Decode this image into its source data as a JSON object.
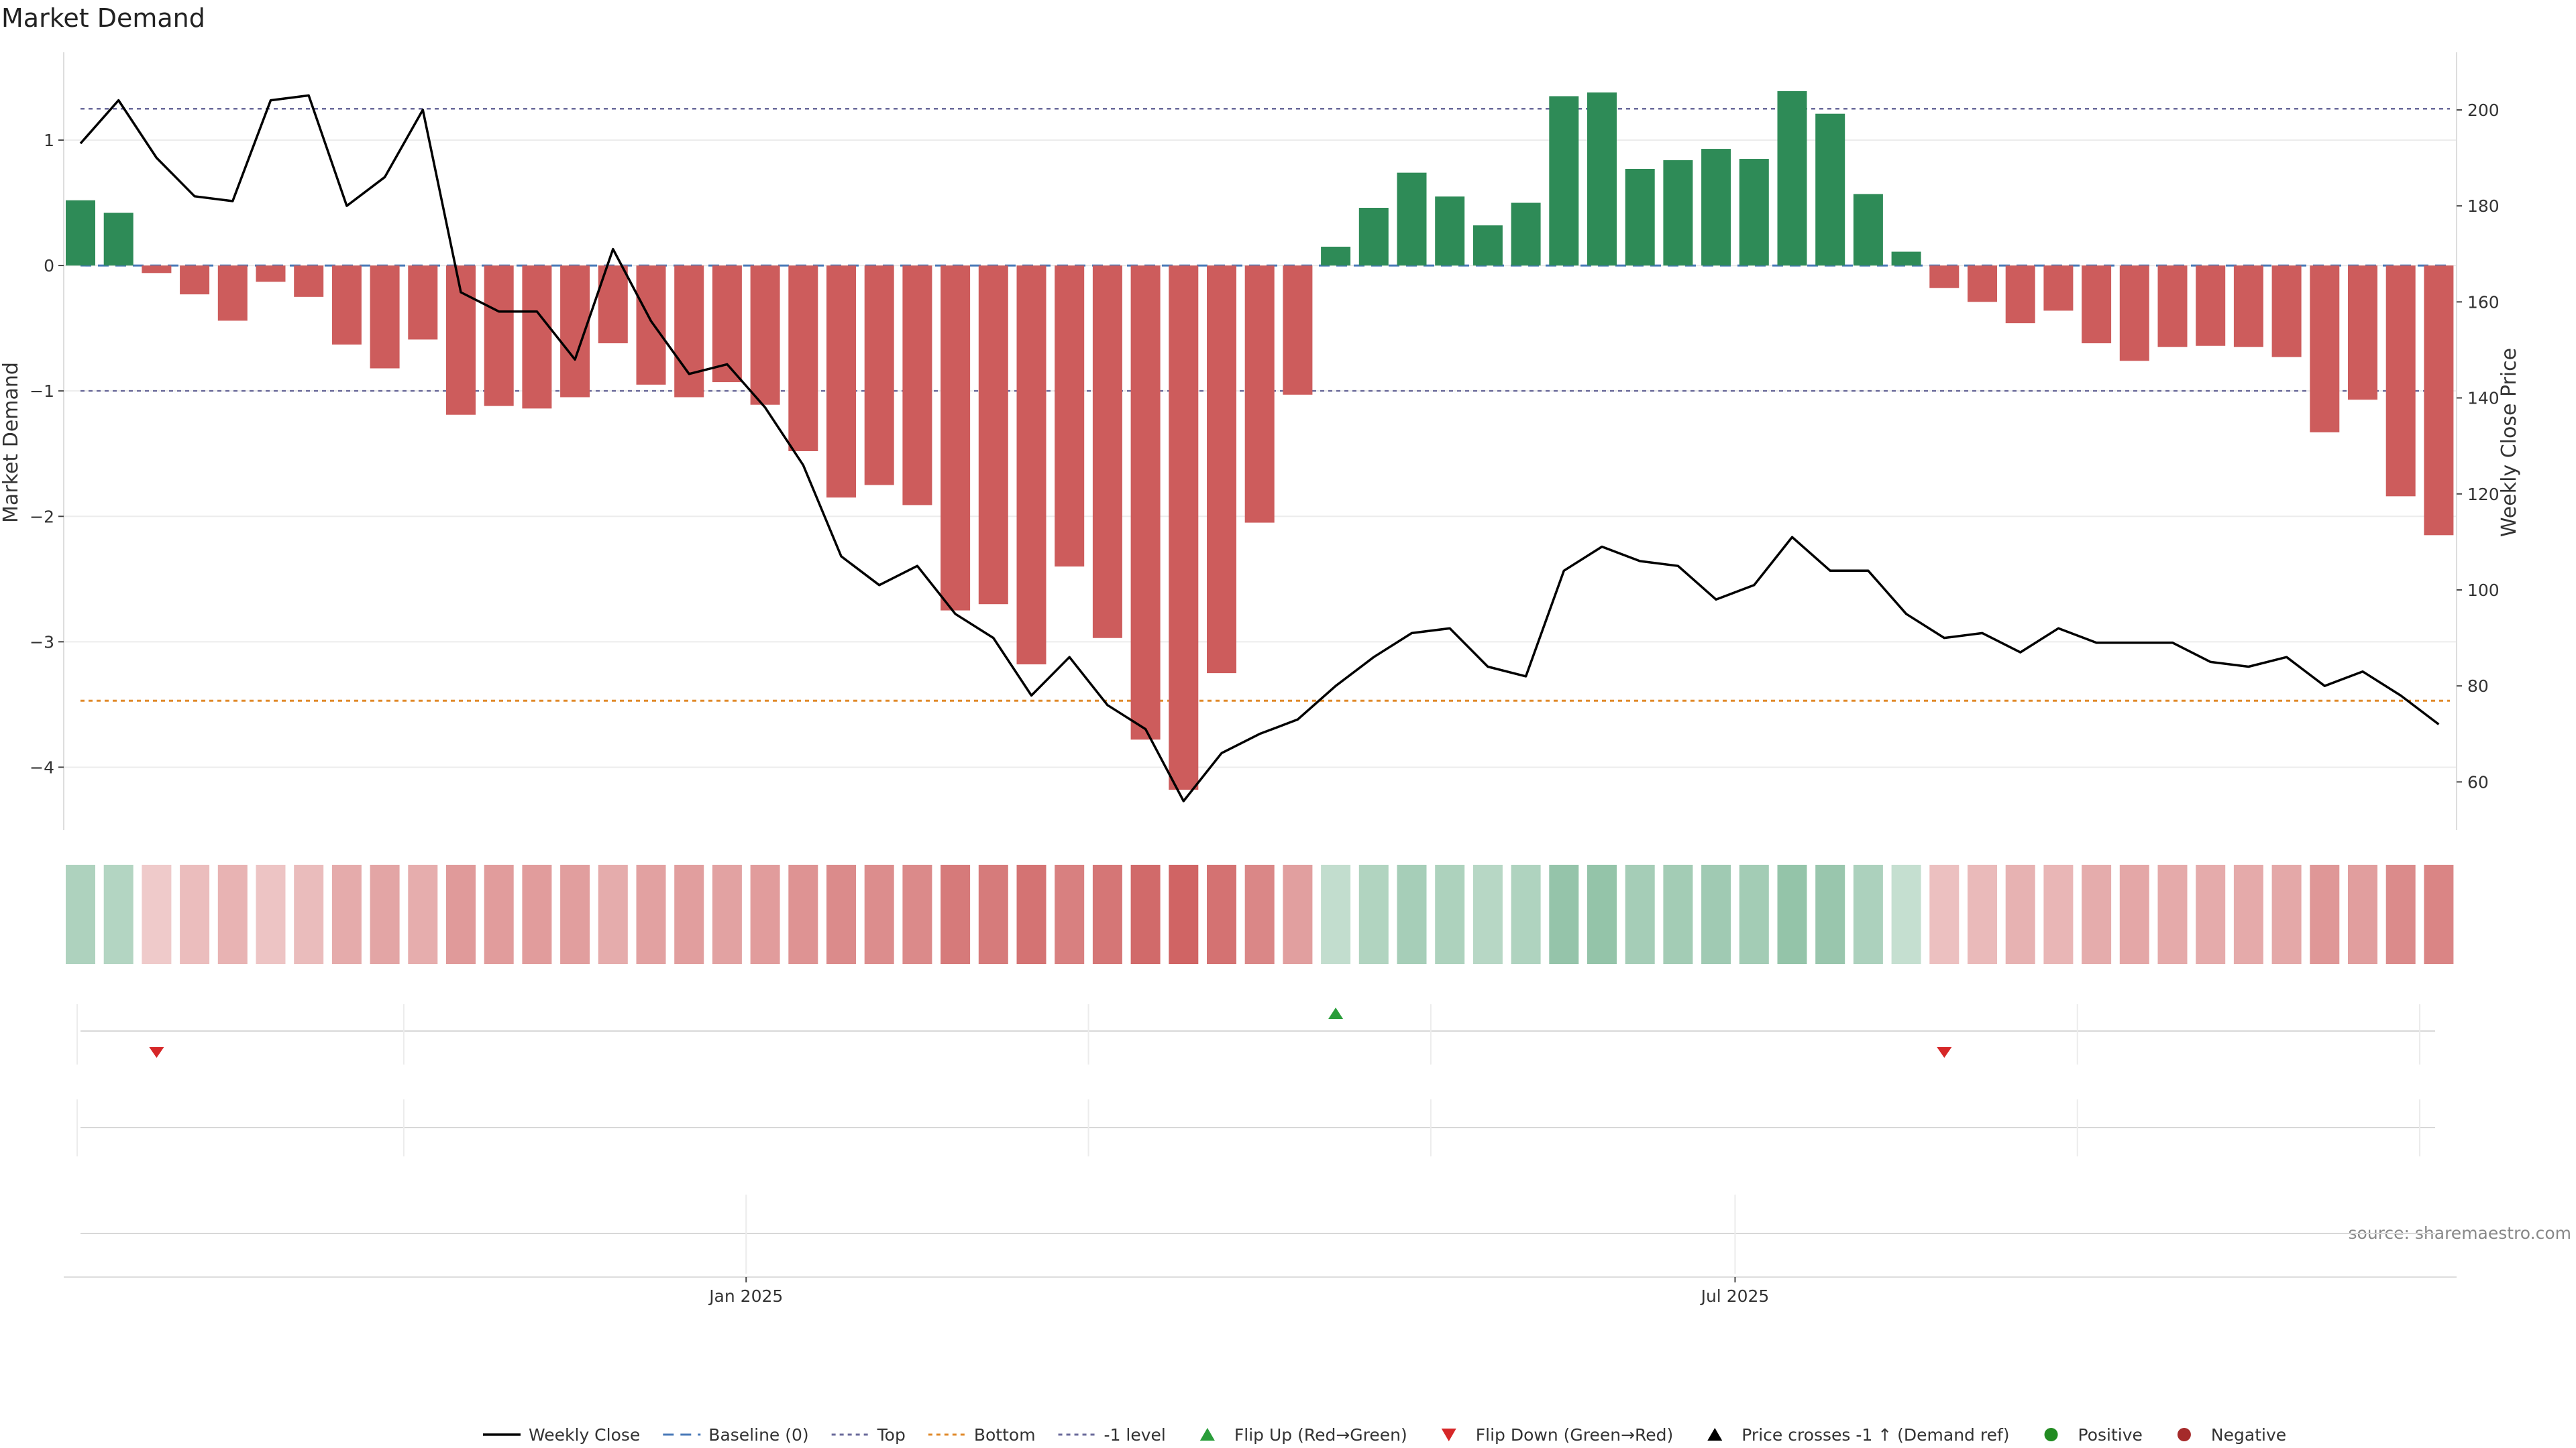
{
  "chart_data": {
    "type": "bar",
    "title": "Market Demand",
    "ylabel": "Market Demand",
    "y2label": "Weekly Close Price",
    "ylim": [
      -4.5,
      1.7
    ],
    "y2lim": [
      50,
      212
    ],
    "yticks": [
      1,
      0,
      -1,
      -2,
      -3,
      -4
    ],
    "y2ticks": [
      200,
      180,
      160,
      140,
      120,
      100,
      80,
      60
    ],
    "x_tick_labels": [
      {
        "label": "Jan 2025",
        "index": 17.5
      },
      {
        "label": "Jul 2025",
        "index": 43.5
      }
    ],
    "levels": {
      "top": 1.25,
      "baseline": 0,
      "minus_one": -1,
      "bottom": -3.47
    },
    "demand": [
      0.52,
      0.42,
      -0.06,
      -0.23,
      -0.44,
      -0.13,
      -0.25,
      -0.63,
      -0.82,
      -0.59,
      -1.19,
      -1.12,
      -1.14,
      -1.05,
      -0.62,
      -0.95,
      -1.05,
      -0.93,
      -1.11,
      -1.48,
      -1.85,
      -1.75,
      -1.91,
      -2.75,
      -2.7,
      -3.18,
      -2.4,
      -2.97,
      -3.78,
      -4.18,
      -3.25,
      -2.05,
      -1.03,
      0.15,
      0.46,
      0.74,
      0.55,
      0.32,
      0.5,
      1.35,
      1.38,
      0.77,
      0.84,
      0.93,
      0.85,
      1.39,
      1.21,
      0.57,
      0.11,
      -0.18,
      -0.29,
      -0.46,
      -0.36,
      -0.62,
      -0.76,
      -0.65,
      -0.64,
      -0.65,
      -0.73,
      -1.33,
      -1.07,
      -1.84,
      -2.15
    ],
    "weekly_close": [
      193,
      202,
      190,
      182,
      181,
      202,
      203,
      180,
      186,
      200,
      162,
      158,
      158,
      148,
      171,
      156,
      145,
      147,
      138,
      126,
      107,
      101,
      105,
      95,
      90,
      78,
      86,
      76,
      71,
      56,
      66,
      70,
      73,
      80,
      86,
      91,
      92,
      84,
      82,
      104,
      109,
      106,
      105,
      98,
      101,
      111,
      104,
      104,
      95,
      90,
      91,
      87,
      92,
      89,
      89,
      89,
      85,
      84,
      86,
      80,
      83,
      78,
      72
    ],
    "flip_up_indices": [
      33
    ],
    "flip_down_indices": [
      2,
      49
    ],
    "colors": {
      "positive_bar": "#2e8b57",
      "negative_bar": "#cd5c5c",
      "price_line": "#000000",
      "baseline": "#4a7ab8",
      "top": "#6b6b9b",
      "bottom": "#e08a2a",
      "minus_one": "#6b6b9b",
      "flip_up": "#2a9d3a",
      "flip_down": "#d62728",
      "positive_dot": "#228b22",
      "negative_dot": "#a52a2a"
    },
    "legend": [
      {
        "label": "Weekly Close",
        "kind": "line"
      },
      {
        "label": "Baseline (0)",
        "kind": "baseline"
      },
      {
        "label": "Top",
        "kind": "top"
      },
      {
        "label": "Bottom",
        "kind": "bottom"
      },
      {
        "label": "-1 level",
        "kind": "minus_one"
      },
      {
        "label": "Flip Up (Red→Green)",
        "kind": "flip_up"
      },
      {
        "label": "Flip Down (Green→Red)",
        "kind": "flip_down"
      },
      {
        "label": "Price crosses -1 ↑ (Demand ref)",
        "kind": "cross"
      },
      {
        "label": "Positive",
        "kind": "positive"
      },
      {
        "label": "Negative",
        "kind": "negative"
      }
    ],
    "source": "source: sharemaestro.com"
  }
}
